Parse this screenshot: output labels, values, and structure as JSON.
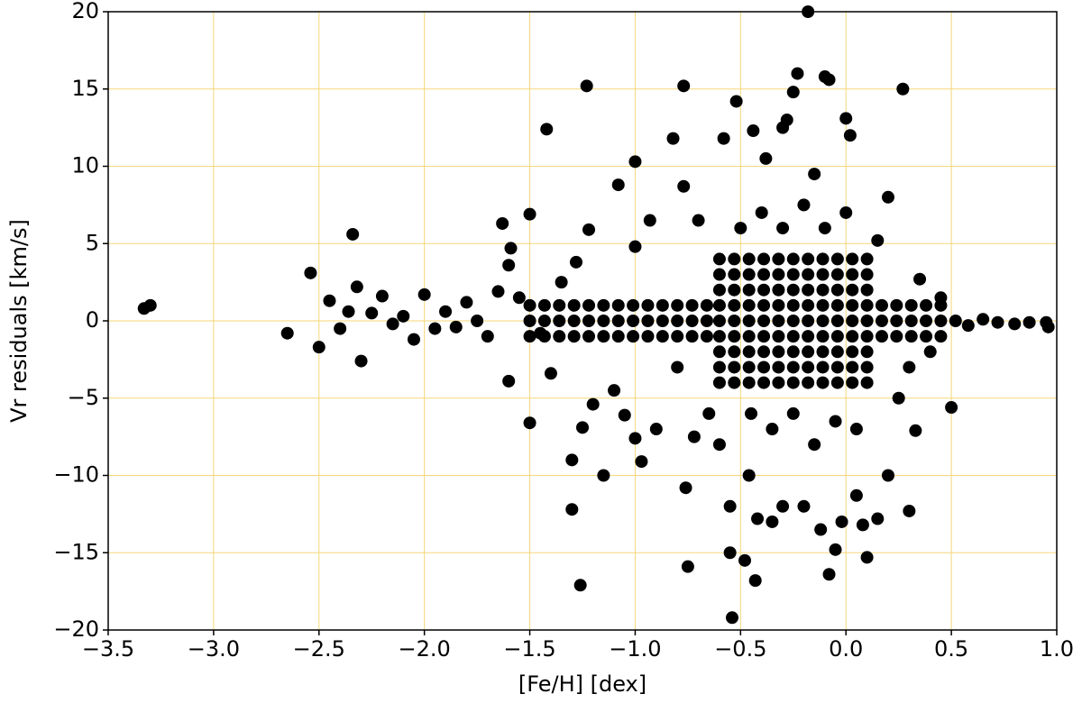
{
  "chart_data": {
    "type": "scatter",
    "xlabel": "[Fe/H] [dex]",
    "ylabel": "Vr residuals [km/s]",
    "color": "#000000",
    "grid": true,
    "grid_color": "#f5d77a",
    "xlim": [
      -3.5,
      1.0
    ],
    "ylim": [
      -20,
      20
    ],
    "xticks": [
      {
        "value": -3.5,
        "label": "−3.5"
      },
      {
        "value": -3.0,
        "label": "−3.0"
      },
      {
        "value": -2.5,
        "label": "−2.5"
      },
      {
        "value": -2.0,
        "label": "−2.0"
      },
      {
        "value": -1.5,
        "label": "−1.5"
      },
      {
        "value": -1.0,
        "label": "−1.0"
      },
      {
        "value": -0.5,
        "label": "−0.5"
      },
      {
        "value": 0,
        "label": "0.0"
      },
      {
        "value": 0.5,
        "label": "0.5"
      },
      {
        "value": 1.0,
        "label": "1.0"
      }
    ],
    "yticks": [
      {
        "value": -20,
        "label": "−20"
      },
      {
        "value": -15,
        "label": "−15"
      },
      {
        "value": -10,
        "label": "−10"
      },
      {
        "value": -5,
        "label": "−5"
      },
      0,
      5,
      10,
      15,
      20
    ],
    "x": [
      -3.33,
      -3.3,
      -2.65,
      -2.54,
      -2.5,
      -2.45,
      -2.4,
      -2.36,
      -2.34,
      -2.3,
      -2.32,
      -2.25,
      -2.2,
      -2.15,
      -2.1,
      -2.05,
      -2.0,
      -1.95,
      -1.9,
      -1.85,
      -1.8,
      -1.75,
      -1.7,
      -1.65,
      -1.63,
      -1.6,
      -1.59,
      -1.6,
      -1.55,
      -1.5,
      -1.5,
      -1.45,
      -1.42,
      -1.4,
      -1.35,
      -1.3,
      -1.3,
      -1.28,
      -1.26,
      -1.25,
      -1.23,
      -1.22,
      -1.2,
      -1.15,
      -1.1,
      -1.08,
      -1.05,
      -1.0,
      -1.0,
      -1.0,
      -0.97,
      -0.93,
      -0.9,
      -0.82,
      -0.8,
      -0.77,
      -0.77,
      -0.76,
      -0.75,
      -0.72,
      -0.7,
      -0.65,
      -0.6,
      -0.58,
      -0.55,
      -0.55,
      -0.54,
      -0.52,
      -0.48,
      -0.46,
      -0.44,
      -0.43,
      -0.42,
      -0.38,
      -0.35,
      -0.3,
      -0.3,
      -0.28,
      -0.25,
      -0.23,
      -0.2,
      -0.18,
      -0.15,
      -0.12,
      -0.1,
      -0.08,
      -0.08,
      -0.05,
      -0.02,
      0,
      0.02,
      0.05,
      0.08,
      0.1,
      0.15,
      0.2,
      0.27,
      0.3,
      0.33,
      0.35,
      0.4,
      0.45,
      0.5,
      0.52,
      0.58,
      0.65,
      0.72,
      0.8,
      0.87,
      0.95,
      0.96,
      0.2,
      0.15,
      0.25,
      0.3,
      -0.5,
      -0.4,
      -0.3,
      -0.2,
      -0.1,
      0,
      -0.45,
      -0.35,
      -0.25,
      -0.15,
      -0.05,
      0.05,
      -0.6,
      -0.53,
      -0.46,
      -0.39,
      -0.32,
      -0.25,
      -0.18,
      -0.11,
      -0.04,
      0.03,
      0.1,
      -0.6,
      -0.53,
      -0.46,
      -0.39,
      -0.32,
      -0.25,
      -0.18,
      -0.11,
      -0.04,
      0.03,
      0.1,
      -0.6,
      -0.53,
      -0.46,
      -0.39,
      -0.32,
      -0.25,
      -0.18,
      -0.11,
      -0.04,
      0.03,
      0.1,
      -0.6,
      -0.53,
      -0.46,
      -0.39,
      -0.32,
      -0.25,
      -0.18,
      -0.11,
      -0.04,
      0.03,
      0.1,
      -0.6,
      -0.53,
      -0.46,
      -0.39,
      -0.32,
      -0.25,
      -0.18,
      -0.11,
      -0.04,
      0.03,
      0.1,
      -0.6,
      -0.53,
      -0.46,
      -0.39,
      -0.32,
      -0.25,
      -0.18,
      -0.11,
      -0.04,
      0.03,
      0.1,
      -0.6,
      -0.53,
      -0.46,
      -0.39,
      -0.32,
      -0.25,
      -0.18,
      -0.11,
      -0.04,
      0.03,
      0.1,
      -0.6,
      -0.53,
      -0.46,
      -0.39,
      -0.32,
      -0.25,
      -0.18,
      -0.11,
      -0.04,
      0.03,
      0.1,
      -0.6,
      -0.53,
      -0.46,
      -0.39,
      -0.32,
      -0.25,
      -0.18,
      -0.11,
      -0.04,
      0.03,
      0.1,
      -1.5,
      -1.43,
      -1.36,
      -1.29,
      -1.22,
      -1.15,
      -1.08,
      -1.01,
      -0.94,
      -0.87,
      -0.8,
      -0.73,
      -0.66,
      -1.5,
      -1.43,
      -1.36,
      -1.29,
      -1.22,
      -1.15,
      -1.08,
      -1.01,
      -0.94,
      -0.87,
      -0.8,
      -0.73,
      -0.66,
      -1.5,
      -1.43,
      -1.36,
      -1.29,
      -1.22,
      -1.15,
      -1.08,
      -1.01,
      -0.94,
      -0.87,
      -0.8,
      -0.73,
      -0.66,
      0.17,
      0.24,
      0.31,
      0.38,
      0.45,
      0.17,
      0.24,
      0.31,
      0.38,
      0.45,
      0.17,
      0.24,
      0.31,
      0.38,
      0.45
    ],
    "values": [
      0.8,
      1.0,
      -0.8,
      3.1,
      -1.7,
      1.3,
      -0.5,
      0.6,
      5.6,
      -2.6,
      2.2,
      0.5,
      1.6,
      -0.2,
      0.3,
      -1.2,
      1.7,
      -0.5,
      0.6,
      -0.4,
      1.2,
      0,
      -1,
      1.9,
      6.3,
      3.6,
      4.7,
      -3.9,
      1.5,
      6.9,
      -6.6,
      -0.8,
      12.4,
      -3.4,
      2.5,
      -12.2,
      -9,
      3.8,
      -17.1,
      -6.9,
      15.2,
      5.9,
      -5.4,
      -10,
      -4.5,
      8.8,
      -6.1,
      10.3,
      4.8,
      -7.6,
      -9.1,
      6.5,
      -7,
      11.8,
      -3,
      15.2,
      8.7,
      -10.8,
      -15.9,
      -7.5,
      6.5,
      -6,
      -8,
      11.8,
      -12,
      -15,
      -19.2,
      14.2,
      -15.5,
      -10,
      12.3,
      -16.8,
      -12.8,
      10.5,
      -13,
      12.5,
      -12,
      13,
      14.8,
      16,
      -12,
      20,
      9.5,
      -13.5,
      15.8,
      15.6,
      -16.4,
      -14.8,
      -13,
      13.1,
      12,
      -11.3,
      -13.2,
      -15.3,
      -12.8,
      -10,
      15,
      -12.3,
      -7.1,
      2.7,
      -2,
      1.5,
      -5.6,
      0,
      -0.3,
      0.1,
      -0.1,
      -0.2,
      -0.1,
      -0.1,
      -0.4,
      8,
      5.2,
      -5,
      -3,
      6,
      7,
      6,
      7.5,
      6,
      7,
      -6,
      -7,
      -6,
      -8,
      -6.5,
      -7,
      -4,
      -4,
      -4,
      -4,
      -4,
      -4,
      -4,
      -4,
      -4,
      -4,
      -4,
      -3,
      -3,
      -3,
      -3,
      -3,
      -3,
      -3,
      -3,
      -3,
      -3,
      -3,
      -2,
      -2,
      -2,
      -2,
      -2,
      -2,
      -2,
      -2,
      -2,
      -2,
      -2,
      -1,
      -1,
      -1,
      -1,
      -1,
      -1,
      -1,
      -1,
      -1,
      -1,
      -1,
      0,
      0,
      0,
      0,
      0,
      0,
      0,
      0,
      0,
      0,
      0,
      1,
      1,
      1,
      1,
      1,
      1,
      1,
      1,
      1,
      1,
      1,
      2,
      2,
      2,
      2,
      2,
      2,
      2,
      2,
      2,
      2,
      2,
      3,
      3,
      3,
      3,
      3,
      3,
      3,
      3,
      3,
      3,
      3,
      4,
      4,
      4,
      4,
      4,
      4,
      4,
      4,
      4,
      4,
      4,
      -1,
      -1,
      -1,
      -1,
      -1,
      -1,
      -1,
      -1,
      -1,
      -1,
      -1,
      -1,
      -1,
      0,
      0,
      0,
      0,
      0,
      0,
      0,
      0,
      0,
      0,
      0,
      0,
      0,
      1,
      1,
      1,
      1,
      1,
      1,
      1,
      1,
      1,
      1,
      1,
      1,
      1,
      -1,
      -1,
      -1,
      -1,
      -1,
      0,
      0,
      0,
      0,
      0,
      1,
      1,
      1,
      1,
      1
    ]
  }
}
